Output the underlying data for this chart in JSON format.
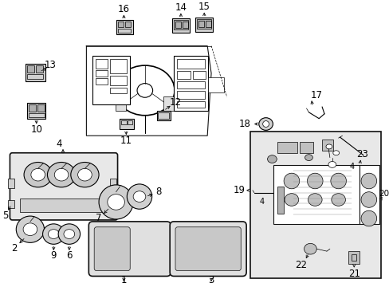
{
  "bg_color": "#ffffff",
  "fig_width": 4.89,
  "fig_height": 3.6,
  "dpi": 100,
  "font_size_labels": 8.5,
  "line_color": "#111111",
  "gray_fill": "#d8d8d8",
  "light_gray": "#eeeeee"
}
